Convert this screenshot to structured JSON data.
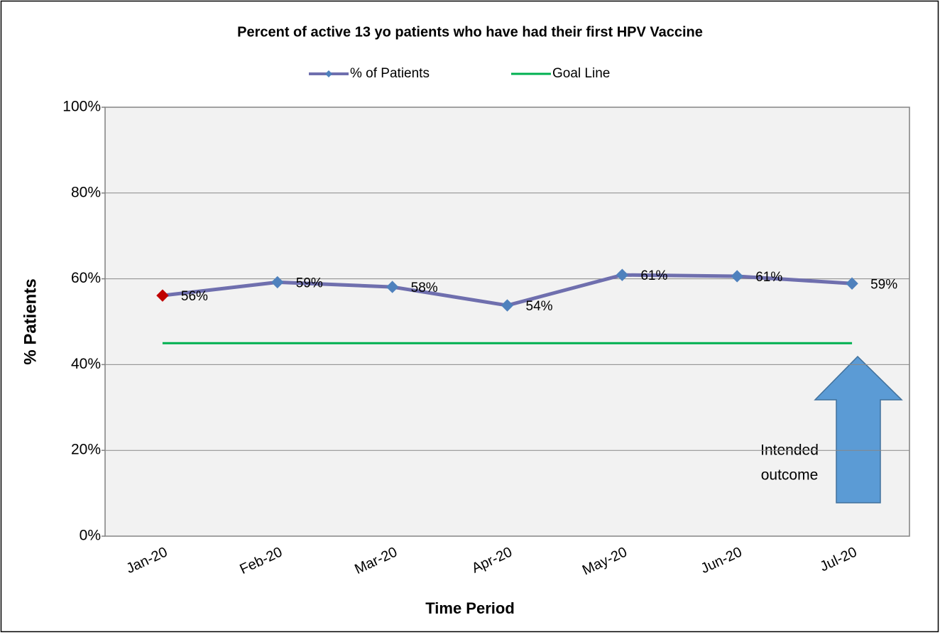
{
  "chart_data": {
    "type": "line",
    "title": "Percent of active 13 yo patients who have had their first HPV Vaccine",
    "ylabel": "% Patients",
    "xlabel": "Time Period",
    "categories": [
      "Jan-20",
      "Feb-20",
      "Mar-20",
      "Apr-20",
      "May-20",
      "Jun-20",
      "Jul-20"
    ],
    "series": [
      {
        "name": "% of Patients",
        "color": "#6f6fae",
        "marker_colors": [
          "#c00000",
          "#4f81bd",
          "#4f81bd",
          "#4f81bd",
          "#4f81bd",
          "#4f81bd",
          "#4f81bd"
        ],
        "values": [
          56.1,
          59.2,
          58.1,
          53.8,
          60.9,
          60.6,
          58.9
        ],
        "value_labels": [
          "56%",
          "59%",
          "58%",
          "54%",
          "61%",
          "61%",
          "59%"
        ]
      },
      {
        "name": "Goal Line",
        "color": "#00b050",
        "values": [
          45,
          45,
          45,
          45,
          45,
          45,
          45
        ]
      }
    ],
    "ylim": [
      0,
      100
    ],
    "yticks": [
      {
        "value": 0,
        "label": "0%"
      },
      {
        "value": 20,
        "label": "20%"
      },
      {
        "value": 40,
        "label": "40%"
      },
      {
        "value": 60,
        "label": "60%"
      },
      {
        "value": 80,
        "label": "80%"
      },
      {
        "value": 100,
        "label": "100%"
      }
    ],
    "grid": true,
    "legend": "top",
    "annotation": [
      "Intended",
      "outcome"
    ]
  }
}
